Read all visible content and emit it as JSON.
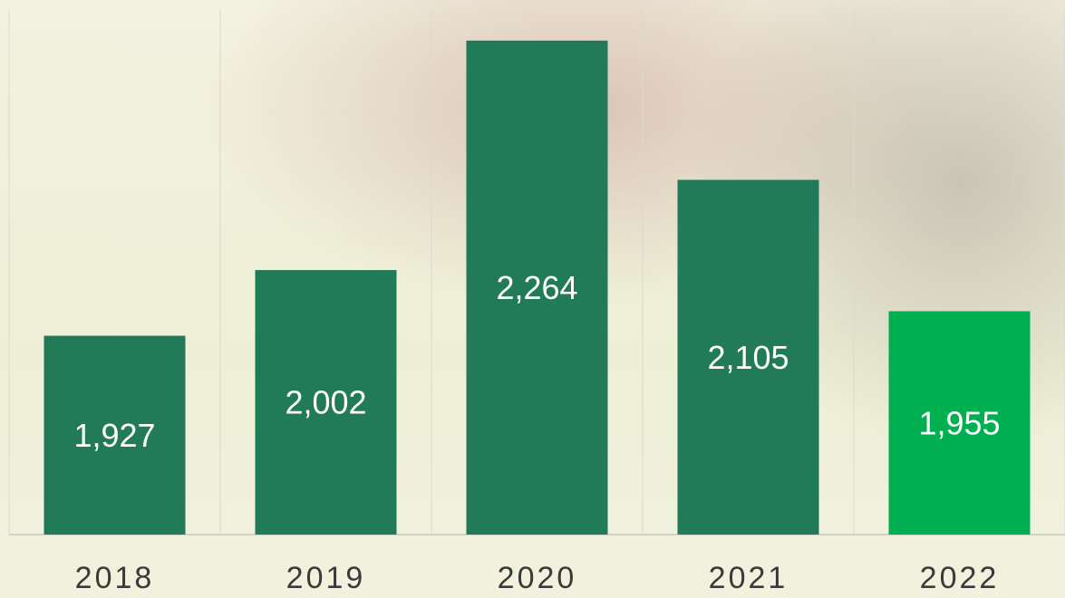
{
  "chart_data": {
    "type": "bar",
    "categories": [
      "2018",
      "2019",
      "2020",
      "2021",
      "2022"
    ],
    "values": [
      1927,
      2002,
      2264,
      2105,
      1955
    ],
    "value_labels": [
      "1,927",
      "2,002",
      "2,264",
      "2,105",
      "1,955"
    ],
    "colors": [
      "#217a58",
      "#217a58",
      "#217a58",
      "#217a58",
      "#00b050"
    ],
    "ylim": [
      1700,
      2300
    ]
  }
}
